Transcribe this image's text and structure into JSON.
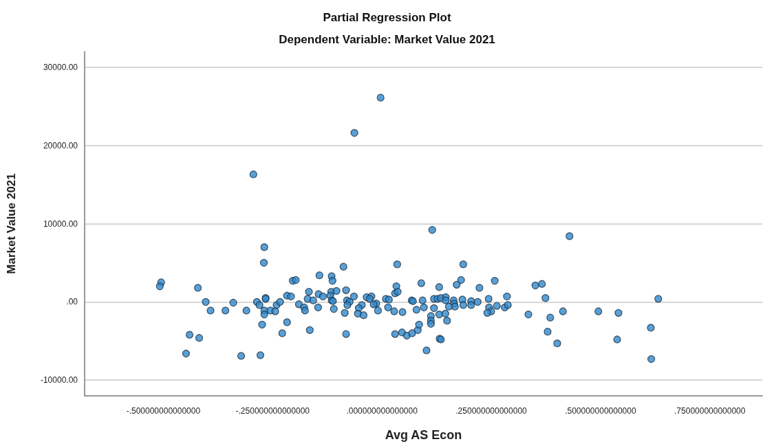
{
  "chart_data": {
    "type": "scatter",
    "title": "Partial Regression Plot",
    "subtitle": "Dependent Variable: Market Value 2021",
    "xlabel": "Avg AS Econ",
    "ylabel": "Market Value 2021",
    "xlim": [
      -0.68,
      0.87
    ],
    "ylim": [
      -12000,
      32000
    ],
    "xticks": [
      {
        "value": -0.5,
        "label": "-.500000000000000"
      },
      {
        "value": -0.25,
        "label": "-.250000000000000"
      },
      {
        "value": 0,
        "label": ".000000000000000"
      },
      {
        "value": 0.25,
        "label": ".250000000000000"
      },
      {
        "value": 0.5,
        "label": ".500000000000000"
      },
      {
        "value": 0.75,
        "label": ".750000000000000"
      }
    ],
    "yticks": [
      {
        "value": -10000,
        "label": "-10000.00"
      },
      {
        "value": 0,
        "label": ".00"
      },
      {
        "value": 10000,
        "label": "10000.00"
      },
      {
        "value": 20000,
        "label": "20000.00"
      },
      {
        "value": 30000,
        "label": "30000.00"
      }
    ],
    "grid": "y",
    "marker": "circle",
    "series": [
      {
        "color": "#2f88cc",
        "x": [
          -0.269,
          -0.27,
          -0.505,
          -0.508,
          -0.421,
          -0.403,
          -0.392,
          -0.358,
          -0.34,
          -0.31,
          -0.286,
          -0.28,
          -0.266,
          -0.266,
          -0.269,
          -0.255,
          -0.244,
          -0.269,
          -0.241,
          -0.233,
          -0.217,
          -0.208,
          -0.204,
          -0.197,
          -0.274,
          -0.217,
          -0.228,
          -0.44,
          -0.418,
          -0.448,
          -0.322,
          -0.278,
          -0.294,
          -0.063,
          -0.003,
          0.115,
          -0.088,
          0.035,
          -0.143,
          -0.115,
          -0.113,
          0.09,
          0.131,
          0.033,
          0.03,
          0.036,
          -0.167,
          -0.145,
          -0.135,
          -0.116,
          -0.104,
          -0.118,
          -0.082,
          -0.064,
          -0.035,
          -0.024,
          -0.028,
          0.009,
          0.016,
          0.068,
          0.071,
          0.093,
          0.119,
          0.127,
          -0.19,
          -0.178,
          -0.176,
          -0.17,
          -0.157,
          -0.146,
          -0.115,
          -0.112,
          -0.11,
          -0.08,
          -0.074,
          -0.079,
          -0.046,
          -0.053,
          -0.013,
          -0.019,
          -0.009,
          0.014,
          0.028,
          0.047,
          -0.085,
          -0.055,
          -0.042,
          0.079,
          0.096,
          0.119,
          0.112,
          0.112,
          0.112,
          0.131,
          -0.165,
          -0.082,
          0.03,
          0.046,
          0.057,
          0.069,
          0.082,
          0.085,
          0.132,
          0.102,
          0.429,
          0.186,
          0.181,
          0.171,
          0.258,
          0.223,
          0.351,
          0.366,
          0.374,
          0.286,
          0.135,
          0.146,
          0.146,
          0.164,
          0.165,
          0.167,
          0.153,
          0.184,
          0.186,
          0.204,
          0.204,
          0.219,
          0.244,
          0.245,
          0.25,
          0.241,
          0.263,
          0.281,
          0.288,
          0.145,
          0.149,
          0.135,
          0.335,
          0.385,
          0.414,
          0.379,
          0.401,
          0.495,
          0.632,
          0.541,
          0.615,
          0.538,
          0.616
        ],
        "values": [
          7000,
          5000,
          2500,
          2000,
          1800,
          0,
          -1100,
          -1100,
          -100,
          -1100,
          0,
          -400,
          500,
          400,
          -1100,
          -1100,
          -1200,
          -1600,
          -400,
          0,
          800,
          700,
          2700,
          2800,
          -2900,
          -2600,
          -4000,
          -4200,
          -4600,
          -6600,
          -6900,
          -6800,
          16300,
          21600,
          26100,
          9200,
          4500,
          4800,
          3400,
          3300,
          2700,
          2400,
          1900,
          2000,
          1100,
          1300,
          1300,
          1000,
          700,
          1300,
          1400,
          800,
          1500,
          700,
          600,
          700,
          400,
          400,
          300,
          200,
          100,
          200,
          400,
          400,
          -300,
          -700,
          -1100,
          400,
          200,
          -700,
          200,
          100,
          -900,
          200,
          0,
          -400,
          -400,
          -800,
          -200,
          -300,
          -1100,
          -700,
          -1200,
          -1300,
          -1400,
          -1500,
          -1700,
          -1000,
          -700,
          -800,
          -1800,
          -2400,
          -2800,
          -1600,
          -3600,
          -4100,
          -4100,
          -3900,
          -4300,
          -4000,
          -3600,
          -2900,
          -4700,
          -6200,
          8400,
          4800,
          2800,
          2200,
          2700,
          1800,
          2100,
          2300,
          500,
          700,
          500,
          600,
          200,
          200,
          -200,
          -600,
          -600,
          300,
          -400,
          100,
          -400,
          0,
          400,
          -700,
          -1200,
          -1400,
          -500,
          -700,
          -400,
          -1500,
          -2400,
          -4800,
          -1600,
          -2000,
          -1200,
          -3800,
          -5300,
          -1200,
          400,
          -1400,
          -3300,
          -4800,
          -7300
        ]
      }
    ]
  }
}
